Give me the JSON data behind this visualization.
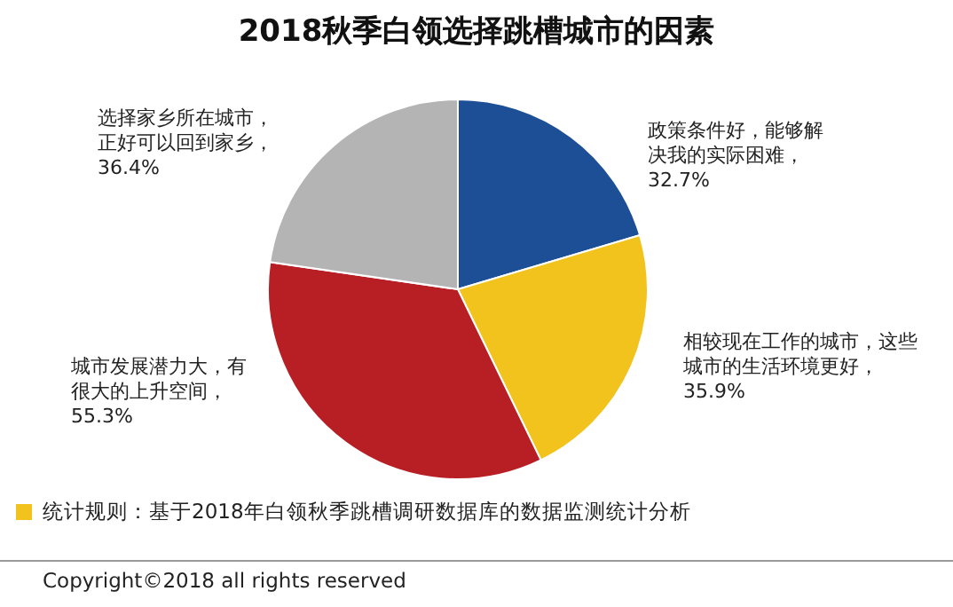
{
  "chart_data": {
    "type": "pie",
    "title": "2018秋季白领选择跳槽城市的因素",
    "categories": [
      "政策条件好，能够解决我的实际困难",
      "相较现在工作的城市，这些城市的生活环境更好",
      "城市发展潜力大，有很大的上升空间",
      "选择家乡所在城市，正好可以回到家乡"
    ],
    "values": [
      32.7,
      35.9,
      55.3,
      36.4
    ],
    "value_labels": [
      "，\n32.7%",
      "，\n35.9%",
      "，\n55.3%",
      "，\n36.4%"
    ],
    "colors": [
      "#1c4f96",
      "#f2c31c",
      "#b71f25",
      "#b4b4b4"
    ],
    "annotations": [
      "统计规则：基于2018年白领秋季跳槽调研数据库的数据监测统计分析",
      "Copyright©2018 all rights reserved"
    ]
  }
}
